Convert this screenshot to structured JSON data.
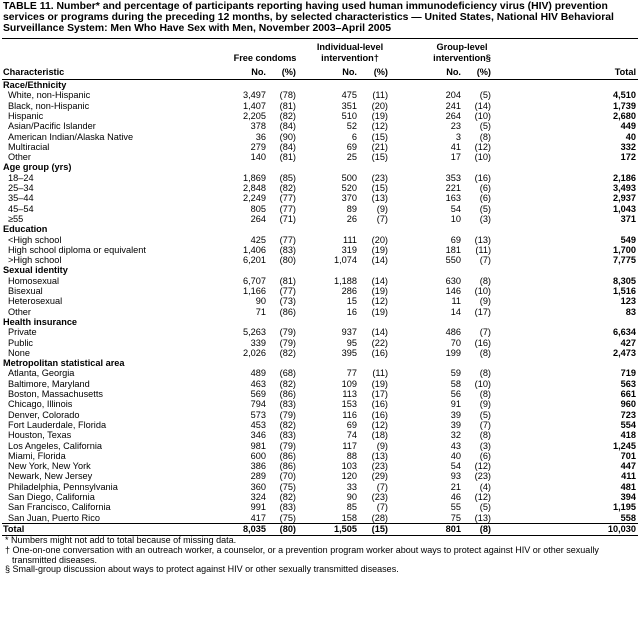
{
  "title": "TABLE 11. Number* and percentage of participants reporting having used human immunodeficiency virus (HIV) prevention services or programs during the preceding 12 months, by selected characteristics — United States, National HIV Behavioral Surveillance System: Men Who Have Sex with Men, November 2003–April 2005",
  "header": {
    "groups": [
      "Free condoms",
      "Individual-level intervention†",
      "Group-level intervention§"
    ],
    "columns": [
      "Characteristic",
      "No.",
      "(%)",
      "No.",
      "(%)",
      "No.",
      "(%)",
      "Total"
    ]
  },
  "sections": [
    {
      "label": "Race/Ethnicity",
      "rows": [
        [
          "White, non-Hispanic",
          "3,497",
          "(78)",
          "475",
          "(11)",
          "204",
          "(5)",
          "4,510"
        ],
        [
          "Black, non-Hispanic",
          "1,407",
          "(81)",
          "351",
          "(20)",
          "241",
          "(14)",
          "1,739"
        ],
        [
          "Hispanic",
          "2,205",
          "(82)",
          "510",
          "(19)",
          "264",
          "(10)",
          "2,680"
        ],
        [
          "Asian/Pacific Islander",
          "378",
          "(84)",
          "52",
          "(12)",
          "23",
          "(5)",
          "449"
        ],
        [
          "American Indian/Alaska Native",
          "36",
          "(90)",
          "6",
          "(15)",
          "3",
          "(8)",
          "40"
        ],
        [
          "Multiracial",
          "279",
          "(84)",
          "69",
          "(21)",
          "41",
          "(12)",
          "332"
        ],
        [
          "Other",
          "140",
          "(81)",
          "25",
          "(15)",
          "17",
          "(10)",
          "172"
        ]
      ]
    },
    {
      "label": "Age group (yrs)",
      "rows": [
        [
          "18–24",
          "1,869",
          "(85)",
          "500",
          "(23)",
          "353",
          "(16)",
          "2,186"
        ],
        [
          "25–34",
          "2,848",
          "(82)",
          "520",
          "(15)",
          "221",
          "(6)",
          "3,493"
        ],
        [
          "35–44",
          "2,249",
          "(77)",
          "370",
          "(13)",
          "163",
          "(6)",
          "2,937"
        ],
        [
          "45–54",
          "805",
          "(77)",
          "89",
          "(9)",
          "54",
          "(5)",
          "1,043"
        ],
        [
          "≥55",
          "264",
          "(71)",
          "26",
          "(7)",
          "10",
          "(3)",
          "371"
        ]
      ]
    },
    {
      "label": "Education",
      "rows": [
        [
          "<High school",
          "425",
          "(77)",
          "111",
          "(20)",
          "69",
          "(13)",
          "549"
        ],
        [
          "High school diploma or equivalent",
          "1,406",
          "(83)",
          "319",
          "(19)",
          "181",
          "(11)",
          "1,700"
        ],
        [
          ">High school",
          "6,201",
          "(80)",
          "1,074",
          "(14)",
          "550",
          "(7)",
          "7,775"
        ]
      ]
    },
    {
      "label": "Sexual identity",
      "rows": [
        [
          "Homosexual",
          "6,707",
          "(81)",
          "1,188",
          "(14)",
          "630",
          "(8)",
          "8,305"
        ],
        [
          "Bisexual",
          "1,166",
          "(77)",
          "286",
          "(19)",
          "146",
          "(10)",
          "1,516"
        ],
        [
          "Heterosexual",
          "90",
          "(73)",
          "15",
          "(12)",
          "11",
          "(9)",
          "123"
        ],
        [
          "Other",
          "71",
          "(86)",
          "16",
          "(19)",
          "14",
          "(17)",
          "83"
        ]
      ]
    },
    {
      "label": "Health insurance",
      "rows": [
        [
          "Private",
          "5,263",
          "(79)",
          "937",
          "(14)",
          "486",
          "(7)",
          "6,634"
        ],
        [
          "Public",
          "339",
          "(79)",
          "95",
          "(22)",
          "70",
          "(16)",
          "427"
        ],
        [
          "None",
          "2,026",
          "(82)",
          "395",
          "(16)",
          "199",
          "(8)",
          "2,473"
        ]
      ]
    },
    {
      "label": "Metropolitan statistical area",
      "rows": [
        [
          "Atlanta, Georgia",
          "489",
          "(68)",
          "77",
          "(11)",
          "59",
          "(8)",
          "719"
        ],
        [
          "Baltimore, Maryland",
          "463",
          "(82)",
          "109",
          "(19)",
          "58",
          "(10)",
          "563"
        ],
        [
          "Boston, Massachusetts",
          "569",
          "(86)",
          "113",
          "(17)",
          "56",
          "(8)",
          "661"
        ],
        [
          "Chicago, Illinois",
          "794",
          "(83)",
          "153",
          "(16)",
          "91",
          "(9)",
          "960"
        ],
        [
          "Denver, Colorado",
          "573",
          "(79)",
          "116",
          "(16)",
          "39",
          "(5)",
          "723"
        ],
        [
          "Fort Lauderdale, Florida",
          "453",
          "(82)",
          "69",
          "(12)",
          "39",
          "(7)",
          "554"
        ],
        [
          "Houston, Texas",
          "346",
          "(83)",
          "74",
          "(18)",
          "32",
          "(8)",
          "418"
        ],
        [
          "Los Angeles, California",
          "981",
          "(79)",
          "117",
          "(9)",
          "43",
          "(3)",
          "1,245"
        ],
        [
          "Miami, Florida",
          "600",
          "(86)",
          "88",
          "(13)",
          "40",
          "(6)",
          "701"
        ],
        [
          "New York, New York",
          "386",
          "(86)",
          "103",
          "(23)",
          "54",
          "(12)",
          "447"
        ],
        [
          "Newark, New Jersey",
          "289",
          "(70)",
          "120",
          "(29)",
          "93",
          "(23)",
          "411"
        ],
        [
          "Philadelphia, Pennsylvania",
          "360",
          "(75)",
          "33",
          "(7)",
          "21",
          "(4)",
          "481"
        ],
        [
          "San Diego, California",
          "324",
          "(82)",
          "90",
          "(23)",
          "46",
          "(12)",
          "394"
        ],
        [
          "San Francisco, California",
          "991",
          "(83)",
          "85",
          "(7)",
          "55",
          "(5)",
          "1,195"
        ],
        [
          "San Juan, Puerto Rico",
          "417",
          "(75)",
          "158",
          "(28)",
          "75",
          "(13)",
          "558"
        ]
      ]
    }
  ],
  "total": [
    "Total",
    "8,035",
    "(80)",
    "1,505",
    "(15)",
    "801",
    "(8)",
    "10,030"
  ],
  "footnotes": [
    "* Numbers might not add to total because of missing data.",
    "† One-on-one conversation with an outreach worker, a counselor, or a prevention program worker about ways to protect against HIV or other sexually transmitted diseases.",
    "§ Small-group discussion about ways to protect against HIV or other sexually transmitted diseases."
  ]
}
